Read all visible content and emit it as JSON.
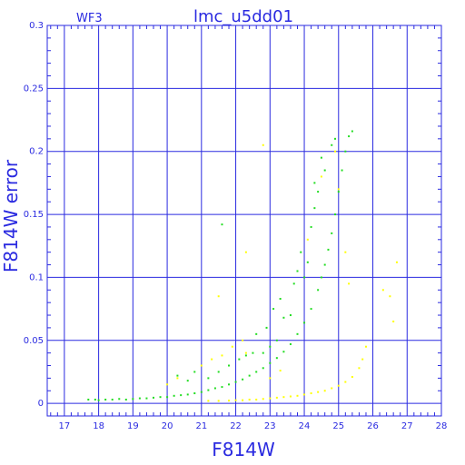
{
  "chart_data": {
    "type": "scatter",
    "title": "lmc_u5dd01",
    "corner_label": "WF3",
    "xlabel": "F814W",
    "ylabel": "F814W error",
    "xlim": [
      16.5,
      28
    ],
    "ylim": [
      -0.01,
      0.3
    ],
    "xticks": [
      17,
      18,
      19,
      20,
      21,
      22,
      23,
      24,
      25,
      26,
      27,
      28
    ],
    "yticks": [
      0,
      0.05,
      0.1,
      0.15,
      0.2,
      0.25,
      0.3
    ],
    "ytick_labels": [
      "0",
      "0.05",
      "0.1",
      "0.15",
      "0.2",
      "0.25",
      "0.3"
    ],
    "grid": true,
    "colors": {
      "axis": "#2a2ae0",
      "grid": "#2a2ae0",
      "series_green": "#22dd22",
      "series_yellow": "#ffff00"
    },
    "series": [
      {
        "color": "#22dd22",
        "points": [
          [
            17.7,
            0.003
          ],
          [
            17.9,
            0.003
          ],
          [
            18.0,
            0.0025
          ],
          [
            18.2,
            0.003
          ],
          [
            18.4,
            0.003
          ],
          [
            18.6,
            0.0035
          ],
          [
            18.8,
            0.003
          ],
          [
            19.0,
            0.0035
          ],
          [
            19.2,
            0.004
          ],
          [
            19.4,
            0.004
          ],
          [
            19.6,
            0.0045
          ],
          [
            19.8,
            0.005
          ],
          [
            20.0,
            0.005
          ],
          [
            20.2,
            0.006
          ],
          [
            20.4,
            0.0065
          ],
          [
            20.6,
            0.007
          ],
          [
            20.8,
            0.008
          ],
          [
            21.0,
            0.009
          ],
          [
            21.2,
            0.0105
          ],
          [
            21.4,
            0.012
          ],
          [
            21.6,
            0.013
          ],
          [
            21.8,
            0.015
          ],
          [
            22.0,
            0.017
          ],
          [
            22.2,
            0.019
          ],
          [
            22.4,
            0.022
          ],
          [
            22.6,
            0.025
          ],
          [
            22.8,
            0.028
          ],
          [
            23.0,
            0.032
          ],
          [
            23.2,
            0.036
          ],
          [
            23.4,
            0.041
          ],
          [
            23.6,
            0.047
          ],
          [
            23.8,
            0.055
          ],
          [
            24.0,
            0.064
          ],
          [
            24.2,
            0.075
          ],
          [
            24.4,
            0.09
          ],
          [
            24.5,
            0.1
          ],
          [
            24.6,
            0.11
          ],
          [
            24.7,
            0.122
          ],
          [
            24.8,
            0.135
          ],
          [
            24.9,
            0.15
          ],
          [
            25.0,
            0.168
          ],
          [
            25.1,
            0.185
          ],
          [
            25.2,
            0.2
          ],
          [
            25.3,
            0.212
          ],
          [
            25.4,
            0.216
          ],
          [
            20.3,
            0.022
          ],
          [
            20.6,
            0.018
          ],
          [
            20.8,
            0.025
          ],
          [
            21.2,
            0.02
          ],
          [
            21.5,
            0.025
          ],
          [
            21.6,
            0.142
          ],
          [
            21.8,
            0.03
          ],
          [
            22.1,
            0.035
          ],
          [
            22.3,
            0.038
          ],
          [
            22.5,
            0.04
          ],
          [
            22.6,
            0.055
          ],
          [
            22.9,
            0.06
          ],
          [
            23.1,
            0.075
          ],
          [
            23.3,
            0.083
          ],
          [
            23.4,
            0.068
          ],
          [
            23.6,
            0.07
          ],
          [
            23.7,
            0.095
          ],
          [
            23.8,
            0.105
          ],
          [
            23.9,
            0.12
          ],
          [
            24.0,
            0.1
          ],
          [
            24.1,
            0.112
          ],
          [
            24.2,
            0.14
          ],
          [
            24.3,
            0.155
          ],
          [
            24.3,
            0.175
          ],
          [
            24.4,
            0.168
          ],
          [
            24.5,
            0.195
          ],
          [
            24.6,
            0.185
          ],
          [
            24.8,
            0.205
          ],
          [
            24.9,
            0.21
          ],
          [
            22.8,
            0.04
          ],
          [
            23.0,
            0.045
          ],
          [
            23.2,
            0.05
          ]
        ]
      },
      {
        "color": "#ffff00",
        "points": [
          [
            21.2,
            0.002
          ],
          [
            21.5,
            0.002
          ],
          [
            21.8,
            0.0022
          ],
          [
            22.0,
            0.0025
          ],
          [
            22.2,
            0.0025
          ],
          [
            22.4,
            0.003
          ],
          [
            22.6,
            0.003
          ],
          [
            22.8,
            0.0035
          ],
          [
            23.0,
            0.004
          ],
          [
            23.2,
            0.0045
          ],
          [
            23.4,
            0.005
          ],
          [
            23.6,
            0.0055
          ],
          [
            23.8,
            0.006
          ],
          [
            24.0,
            0.007
          ],
          [
            24.2,
            0.008
          ],
          [
            24.4,
            0.009
          ],
          [
            24.6,
            0.01
          ],
          [
            24.8,
            0.012
          ],
          [
            25.0,
            0.014
          ],
          [
            25.2,
            0.017
          ],
          [
            25.4,
            0.021
          ],
          [
            25.6,
            0.028
          ],
          [
            25.7,
            0.035
          ],
          [
            25.8,
            0.045
          ],
          [
            21.0,
            0.03
          ],
          [
            21.3,
            0.035
          ],
          [
            21.6,
            0.038
          ],
          [
            21.9,
            0.045
          ],
          [
            22.2,
            0.05
          ],
          [
            22.3,
            0.04
          ],
          [
            22.8,
            0.205
          ],
          [
            23.0,
            0.02
          ],
          [
            23.3,
            0.026
          ],
          [
            24.1,
            0.13
          ],
          [
            24.5,
            0.18
          ],
          [
            24.9,
            0.2
          ],
          [
            25.0,
            0.17
          ],
          [
            25.2,
            0.12
          ],
          [
            25.3,
            0.095
          ],
          [
            26.3,
            0.09
          ],
          [
            26.5,
            0.085
          ],
          [
            26.6,
            0.065
          ],
          [
            26.7,
            0.112
          ],
          [
            22.3,
            0.12
          ],
          [
            21.5,
            0.085
          ],
          [
            20.3,
            0.02
          ],
          [
            20.0,
            0.015
          ]
        ]
      }
    ]
  }
}
